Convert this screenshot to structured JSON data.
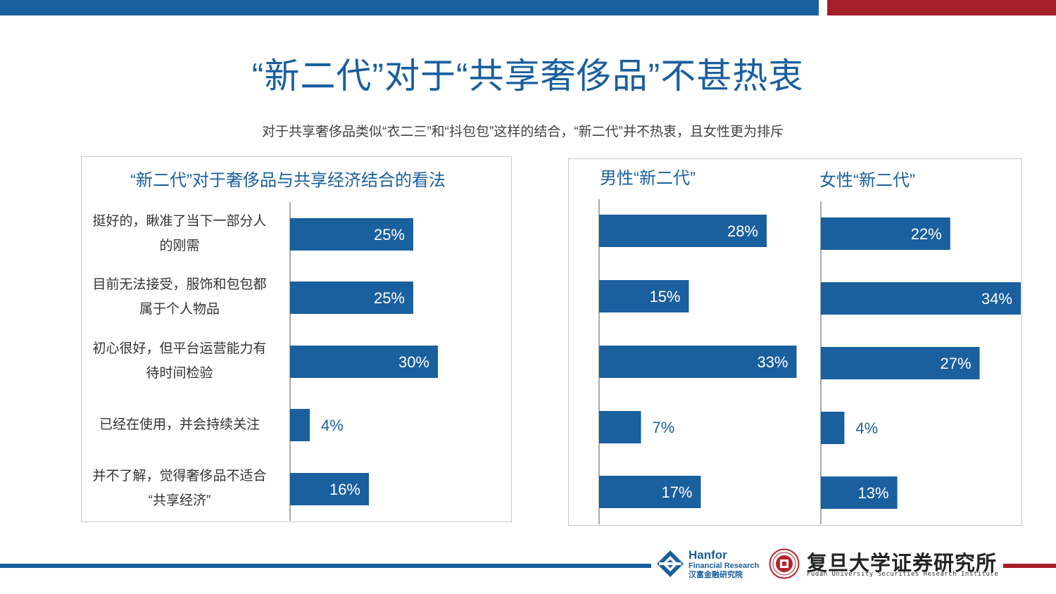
{
  "title": "“新二代”对于“共享奢侈品”不甚热衷",
  "subtitle": "对于共享奢侈品类似“衣二三”和“抖包包”这样的结合，“新二代”并不热衷，且女性更为排斥",
  "colors": {
    "primary": "#1a5f9e",
    "accent": "#a51f2a"
  },
  "chart_data": [
    {
      "type": "bar",
      "orientation": "horizontal",
      "title": "“新二代”对于奢侈品与共享经济结合的看法",
      "categories": [
        [
          "挺好的，瞅准了当下一部分人",
          "的刚需"
        ],
        [
          "目前无法接受，服饰和包包都",
          "属于个人物品"
        ],
        [
          "初心很好，但平台运营能力有",
          "待时间检验"
        ],
        [
          "已经在使用，并会持续关注"
        ],
        [
          "并不了解，觉得奢侈品不适合",
          "“共享经济”"
        ]
      ],
      "values": [
        25,
        25,
        30,
        4,
        16
      ],
      "data_labels": [
        "25%",
        "25%",
        "30%",
        "4%",
        "16%"
      ],
      "xlim": [
        0,
        45
      ]
    },
    {
      "type": "bar",
      "orientation": "horizontal",
      "title": "男性“新二代”",
      "values": [
        28,
        15,
        33,
        7,
        17
      ],
      "data_labels": [
        "28%",
        "15%",
        "33%",
        "7%",
        "17%"
      ],
      "xlim": [
        0,
        40
      ]
    },
    {
      "type": "bar",
      "orientation": "horizontal",
      "title": "女性“新二代”",
      "values": [
        22,
        34,
        27,
        4,
        13
      ],
      "data_labels": [
        "22%",
        "34%",
        "27%",
        "4%",
        "13%"
      ],
      "xlim": [
        0,
        34
      ]
    }
  ],
  "footer": {
    "hanfor_name": "Hanfor",
    "hanfor_sub": "Financial Research",
    "hanfor_cn": "汉富金融研究院",
    "fudan_name": "复旦大学证券研究所",
    "fudan_en": "Fudan University Securities Research Institute",
    "hanfor_icon": "hanfor-logo-icon",
    "fudan_icon": "fudan-seal-icon"
  }
}
